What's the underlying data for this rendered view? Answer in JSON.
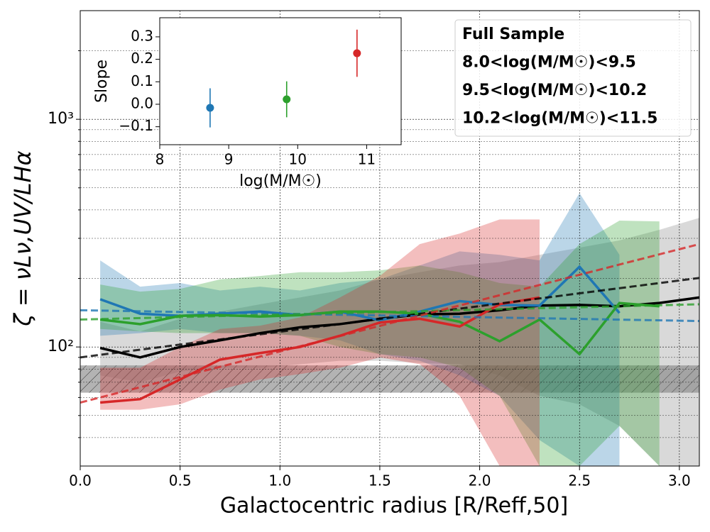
{
  "chart_data": [
    {
      "type": "line",
      "yscale": "log",
      "grid": true,
      "xlabel": "Galactocentric radius [R/Reff,50]",
      "ylabel": "ζ = νLν,UV/LHα",
      "xlim": [
        0,
        3.1
      ],
      "ylim": [
        30,
        3000
      ],
      "xticks": [
        {
          "value": 0,
          "label": "0.0"
        },
        0.5,
        {
          "value": 1,
          "label": "1.0"
        },
        1.5,
        {
          "value": 2,
          "label": "2.0"
        },
        2.5,
        {
          "value": 3,
          "label": "3.0"
        }
      ],
      "yticks": [
        {
          "value": 100,
          "label": "10²"
        },
        {
          "value": 1000,
          "label": "10³"
        }
      ],
      "yminorticks": [
        40,
        50,
        60,
        70,
        80,
        90,
        200,
        300,
        400,
        500,
        600,
        700,
        800,
        900,
        2000
      ],
      "legend": "upper right",
      "hatch_band": [
        63,
        83
      ],
      "hatch_color": "#808080",
      "x": [
        0.1,
        0.3,
        0.5,
        0.7,
        0.9,
        1.1,
        1.3,
        1.5,
        1.7,
        1.9,
        2.1,
        2.3,
        2.5,
        2.7,
        2.9,
        3.1
      ],
      "fit_x": [
        0,
        3.1
      ],
      "series": [
        {
          "name": "Full Sample",
          "color": "#000000",
          "band_color": "#808080",
          "values": [
            99,
            90,
            100,
            107,
            115,
            122,
            126,
            133,
            139,
            140,
            145,
            152,
            153,
            151,
            156,
            165
          ],
          "upper": [
            129,
            117,
            133,
            143,
            154,
            165,
            177,
            198,
            213,
            228,
            236,
            254,
            273,
            294,
            327,
            369
          ],
          "lower": [
            75,
            70,
            78,
            81,
            81,
            84,
            87,
            87,
            85,
            84,
            75,
            61,
            56,
            45,
            30,
            30
          ],
          "fit": [
            90,
            201
          ]
        },
        {
          "name": "8.0<log(M/M☉)<9.5",
          "color": "#1f77b4",
          "band_color": "#1f77b4",
          "values": [
            162,
            140,
            137,
            140,
            143,
            138,
            143,
            131,
            143,
            159,
            153,
            152,
            225,
            141,
            null,
            null
          ],
          "upper": [
            240,
            184,
            191,
            177,
            184,
            177,
            191,
            198,
            228,
            263,
            254,
            240,
            474,
            254,
            null,
            null
          ],
          "lower": [
            112,
            115,
            120,
            115,
            115,
            112,
            107,
            93,
            87,
            75,
            61,
            39,
            30,
            30,
            null,
            null
          ],
          "fit": [
            145,
            130
          ]
        },
        {
          "name": "9.5<log(M/M☉)<10.2",
          "color": "#2ca02c",
          "band_color": "#2ca02c",
          "values": [
            132,
            126,
            137,
            138,
            136,
            138,
            143,
            143,
            140,
            129,
            106,
            132,
            93,
            156,
            151,
            null
          ],
          "upper": [
            188,
            175,
            180,
            198,
            205,
            213,
            213,
            217,
            228,
            213,
            191,
            184,
            283,
            359,
            356,
            null
          ],
          "lower": [
            120,
            117,
            115,
            115,
            115,
            112,
            100,
            93,
            90,
            81,
            61,
            30,
            30,
            45,
            30,
            null
          ],
          "fit": [
            132,
            154
          ]
        },
        {
          "name": "10.2<log(M/M☉)<11.5",
          "color": "#d62728",
          "band_color": "#d62728",
          "values": [
            57,
            59,
            72,
            88,
            94,
            100,
            112,
            128,
            133,
            123,
            154,
            165,
            null,
            null,
            null,
            null
          ],
          "upper": [
            81,
            81,
            100,
            120,
            124,
            135,
            165,
            205,
            283,
            315,
            363,
            363,
            null,
            null,
            null,
            null
          ],
          "lower": [
            53,
            53,
            56,
            65,
            72,
            76,
            81,
            90,
            84,
            61,
            30,
            30,
            null,
            null,
            null,
            null
          ],
          "fit": [
            57,
            283
          ]
        }
      ]
    },
    {
      "type": "errorbar",
      "xlabel": "log(M/M☉)",
      "ylabel": "Slope",
      "xlim": [
        8,
        11.5
      ],
      "ylim": [
        -0.18,
        0.385
      ],
      "xticks": [
        8,
        9,
        10,
        11
      ],
      "yticks": [
        {
          "value": -0.1,
          "label": "−0.1"
        },
        {
          "value": 0,
          "label": "0.0"
        },
        0.1,
        0.2,
        0.3
      ],
      "x": [
        8.73,
        9.84,
        10.86
      ],
      "values": [
        -0.016,
        0.022,
        0.227
      ],
      "errors": [
        0.087,
        0.08,
        0.105
      ],
      "colors": [
        "#1f77b4",
        "#2ca02c",
        "#d62728"
      ]
    }
  ]
}
